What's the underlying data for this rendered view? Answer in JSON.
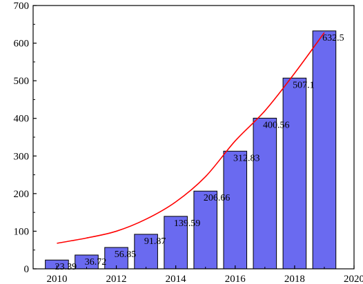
{
  "chart_data": {
    "type": "bar",
    "x": [
      2010,
      2011,
      2012,
      2013,
      2014,
      2015,
      2016,
      2017,
      2018,
      2019
    ],
    "values": [
      23.39,
      36.72,
      56.85,
      91.87,
      139.59,
      206.66,
      312.83,
      400.56,
      507.1,
      632.5
    ],
    "data_labels": [
      "23.39",
      "36.72",
      "56.85",
      "91.87",
      "139.59",
      "206.66",
      "312.83",
      "400.56",
      "507.1",
      "632.5"
    ],
    "trend_line": [
      [
        2010,
        68
      ],
      [
        2011,
        82
      ],
      [
        2012,
        100
      ],
      [
        2013,
        132
      ],
      [
        2014,
        178
      ],
      [
        2015,
        245
      ],
      [
        2016,
        340
      ],
      [
        2017,
        420
      ],
      [
        2018,
        520
      ],
      [
        2019,
        628
      ]
    ],
    "xlim": [
      2009.2,
      2020
    ],
    "ylim": [
      0,
      700
    ],
    "x_ticks": [
      2010,
      2012,
      2014,
      2016,
      2018,
      2020
    ],
    "y_ticks": [
      0,
      100,
      200,
      300,
      400,
      500,
      600,
      700
    ],
    "title": "",
    "xlabel": "",
    "ylabel": "",
    "colors": {
      "bar_fill": "#6a6af0",
      "bar_stroke": "#000000",
      "trend_line": "#ff0000",
      "axis": "#000000"
    }
  }
}
